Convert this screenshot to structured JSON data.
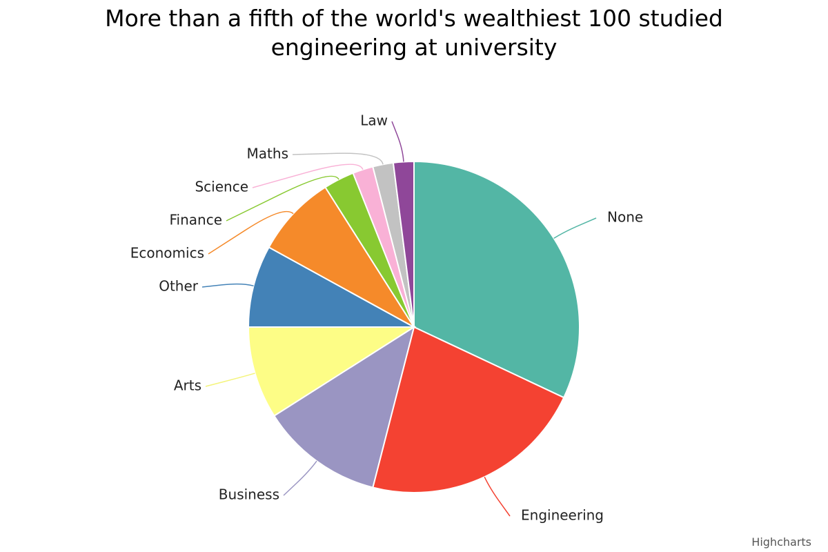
{
  "chart_data": {
    "type": "pie",
    "title": "More than a fifth of the world's wealthiest 100 studied engineering at university",
    "categories": [
      "None",
      "Engineering",
      "Business",
      "Arts",
      "Other",
      "Economics",
      "Finance",
      "Science",
      "Maths",
      "Law"
    ],
    "values": [
      32,
      22,
      12,
      9,
      8,
      8,
      3,
      2,
      2,
      2
    ],
    "colors": [
      "#53b6a5",
      "#f44232",
      "#9a95c2",
      "#fdfd86",
      "#4382b7",
      "#f58a2a",
      "#88c931",
      "#f9b1d6",
      "#c2c2c2",
      "#8f4799"
    ],
    "credits": "Highcharts"
  }
}
